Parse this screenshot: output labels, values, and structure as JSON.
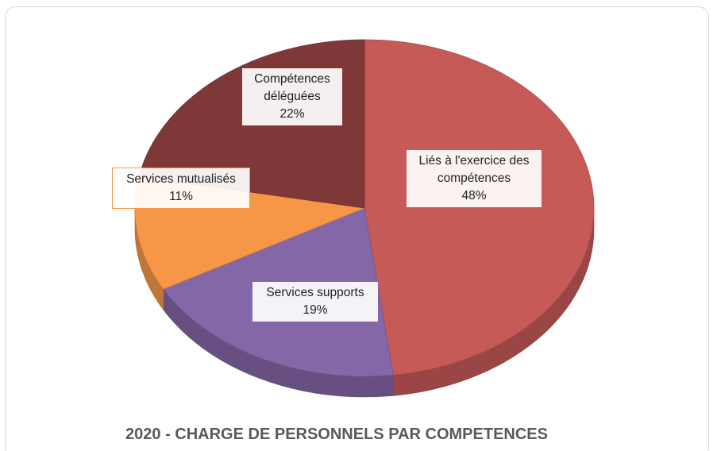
{
  "chart_data": {
    "type": "pie",
    "title": "2020 - CHARGE DE PERSONNELS PAR COMPETENCES",
    "categories": [
      "Liés à l'exercice des compétences",
      "Services supports",
      "Services mutualisés",
      "Compétences déléguées"
    ],
    "values": [
      48,
      19,
      11,
      22
    ],
    "value_labels": [
      "48%",
      "19%",
      "11%",
      "22%"
    ],
    "colors": [
      "#c55a57",
      "#8467a6",
      "#f79646",
      "#7e3838"
    ]
  }
}
